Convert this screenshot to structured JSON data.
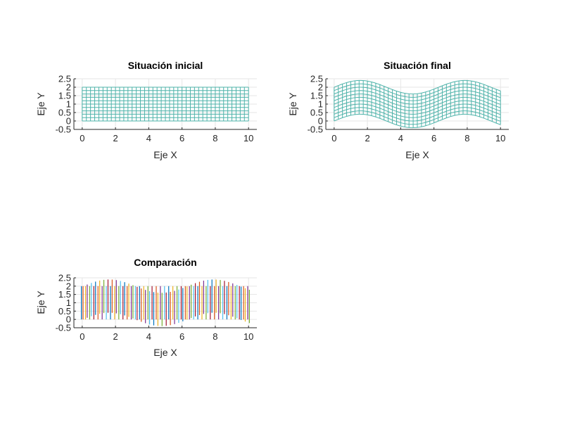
{
  "chart_data": [
    {
      "type": "line",
      "title": "Situación inicial",
      "xlabel": "Eje X",
      "ylabel": "Eje Y",
      "xlim": [
        -0.5,
        10.5
      ],
      "ylim": [
        -0.5,
        2.5
      ],
      "xticks": [
        "0",
        "2",
        "4",
        "6",
        "8",
        "10"
      ],
      "yticks": [
        "-0.5",
        "0",
        "0.5",
        "1",
        "1.5",
        "2",
        "2.5"
      ],
      "grid": true,
      "mesh": {
        "x": [
          0,
          10
        ],
        "y": [
          0,
          2
        ],
        "x_lines": 41,
        "y_lines": 11,
        "deformation": "none",
        "color": "#4fb3aa"
      }
    },
    {
      "type": "line",
      "title": "Situación final",
      "xlabel": "Eje X",
      "ylabel": "Eje Y",
      "xlim": [
        -0.5,
        10.5
      ],
      "ylim": [
        -0.5,
        2.5
      ],
      "xticks": [
        "0",
        "2",
        "4",
        "6",
        "8",
        "10"
      ],
      "yticks": [
        "-0.5",
        "0",
        "0.5",
        "1",
        "1.5",
        "2",
        "2.5"
      ],
      "grid": true,
      "mesh": {
        "x": [
          0,
          10
        ],
        "y": [
          0,
          2
        ],
        "x_lines": 41,
        "y_lines": 11,
        "deformation": "y + 0.4*sin(x)",
        "color": "#4fb3aa"
      }
    },
    {
      "type": "line",
      "title": "Comparación",
      "xlabel": "Eje X",
      "ylabel": "Eje Y",
      "xlim": [
        -0.5,
        10.5
      ],
      "ylim": [
        -0.5,
        2.5
      ],
      "xticks": [
        "0",
        "2",
        "4",
        "6",
        "8",
        "10"
      ],
      "yticks": [
        "-0.5",
        "0",
        "0.5",
        "1",
        "1.5",
        "2",
        "2.5"
      ],
      "grid": true,
      "series_note": "vertical lines at x = 0..10 step 0.25, initial (y 0 to 2) and final (y + 0.4*sin(x))",
      "colors": [
        "#0072bd",
        "#d95319",
        "#edb120",
        "#7e2f8e",
        "#77ac30",
        "#4dbeee",
        "#a2142f"
      ]
    }
  ]
}
